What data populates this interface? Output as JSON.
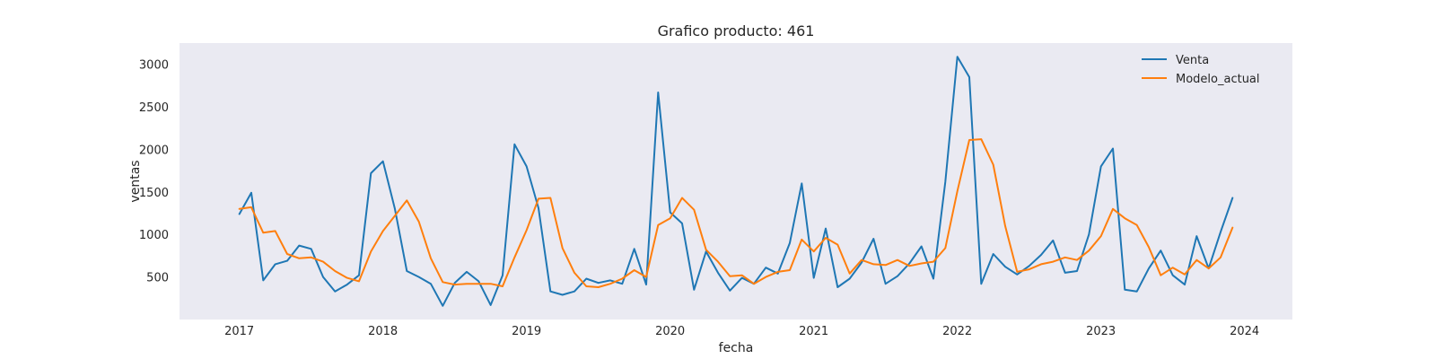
{
  "chart_data": {
    "type": "line",
    "title": "Grafico producto: 461",
    "xlabel": "fecha",
    "ylabel": "ventas",
    "x_start": "2017-01",
    "x_frequency": "monthly",
    "xlim": [
      "2016-08",
      "2024-05"
    ],
    "ylim": [
      0,
      3250
    ],
    "xticks": [
      "2017",
      "2018",
      "2019",
      "2020",
      "2021",
      "2022",
      "2023",
      "2024"
    ],
    "yticks": [
      500,
      1000,
      1500,
      2000,
      2500,
      3000
    ],
    "grid": false,
    "legend_position": "top-right",
    "series": [
      {
        "name": "Venta",
        "color": "#1f77b4",
        "values": [
          1240,
          1490,
          460,
          650,
          690,
          870,
          830,
          500,
          330,
          410,
          520,
          1720,
          1860,
          1300,
          570,
          500,
          420,
          160,
          430,
          560,
          450,
          170,
          520,
          2060,
          1800,
          1310,
          330,
          290,
          330,
          480,
          430,
          460,
          420,
          830,
          410,
          2670,
          1260,
          1130,
          350,
          800,
          550,
          340,
          490,
          420,
          610,
          540,
          900,
          1600,
          490,
          1070,
          380,
          480,
          670,
          950,
          420,
          510,
          660,
          860,
          480,
          1620,
          3090,
          2850,
          420,
          770,
          620,
          530,
          630,
          760,
          930,
          550,
          570,
          1000,
          1800,
          2010,
          350,
          330,
          600,
          810,
          520,
          410,
          980,
          600,
          1030,
          1430
        ]
      },
      {
        "name": "Modelo_actual",
        "color": "#ff7f0e",
        "values": [
          1300,
          1320,
          1020,
          1040,
          770,
          720,
          730,
          680,
          570,
          490,
          450,
          800,
          1040,
          1220,
          1400,
          1150,
          720,
          440,
          410,
          420,
          420,
          420,
          390,
          730,
          1050,
          1420,
          1430,
          840,
          550,
          390,
          380,
          420,
          480,
          580,
          500,
          1110,
          1190,
          1430,
          1290,
          820,
          680,
          510,
          520,
          420,
          500,
          560,
          580,
          940,
          800,
          960,
          880,
          540,
          700,
          650,
          640,
          700,
          630,
          660,
          680,
          840,
          1510,
          2110,
          2120,
          1820,
          1100,
          560,
          590,
          650,
          680,
          730,
          700,
          810,
          980,
          1300,
          1190,
          1110,
          850,
          520,
          610,
          530,
          700,
          600,
          730,
          1080
        ]
      }
    ]
  }
}
